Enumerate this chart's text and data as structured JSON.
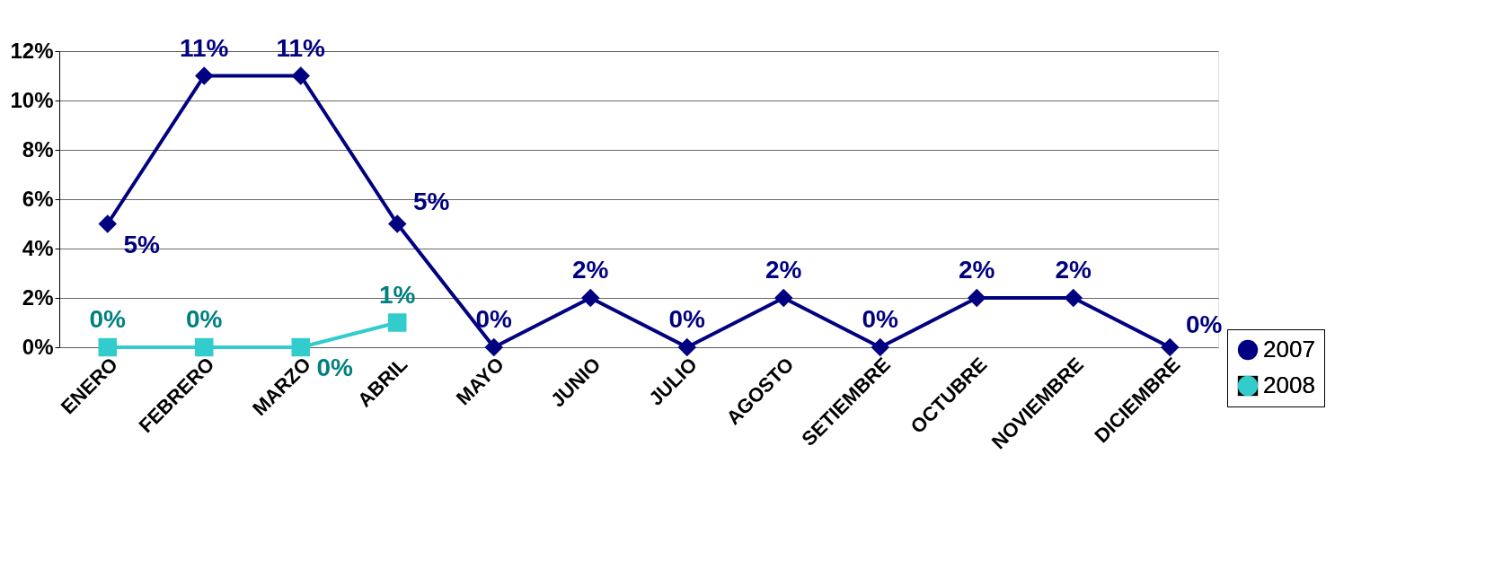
{
  "chart_data": {
    "type": "line",
    "categories": [
      "ENERO",
      "FEBRERO",
      "MARZO",
      "ABRIL",
      "MAYO",
      "JUNIO",
      "JULIO",
      "AGOSTO",
      "SETIEMBRE",
      "OCTUBRE",
      "NOVIEMBRE",
      "DICIEMBRE"
    ],
    "series": [
      {
        "name": "2007",
        "color": "#000080",
        "marker": "diamond",
        "values": [
          5,
          11,
          11,
          5,
          0,
          2,
          0,
          2,
          0,
          2,
          2,
          0
        ],
        "value_labels": [
          "5%",
          "11%",
          "11%",
          "5%",
          "0%",
          "2%",
          "0%",
          "2%",
          "0%",
          "2%",
          "2%",
          "0%"
        ]
      },
      {
        "name": "2008",
        "color": "#33cccc",
        "marker": "square",
        "values": [
          0,
          0,
          0,
          1,
          null,
          null,
          null,
          null,
          null,
          null,
          null,
          null
        ],
        "value_labels": [
          "0%",
          "0%",
          "0%",
          "1%",
          null,
          null,
          null,
          null,
          null,
          null,
          null,
          null
        ]
      }
    ],
    "ylim": [
      0,
      12
    ],
    "yticks": [
      {
        "value": 0,
        "label": "0%"
      },
      {
        "value": 2,
        "label": "2%"
      },
      {
        "value": 4,
        "label": "4%"
      },
      {
        "value": 6,
        "label": "6%"
      },
      {
        "value": 8,
        "label": "8%"
      },
      {
        "value": 10,
        "label": "10%"
      },
      {
        "value": 12,
        "label": "12%"
      }
    ],
    "grid": "y",
    "legend": "bottom right",
    "line_style": "solid"
  }
}
